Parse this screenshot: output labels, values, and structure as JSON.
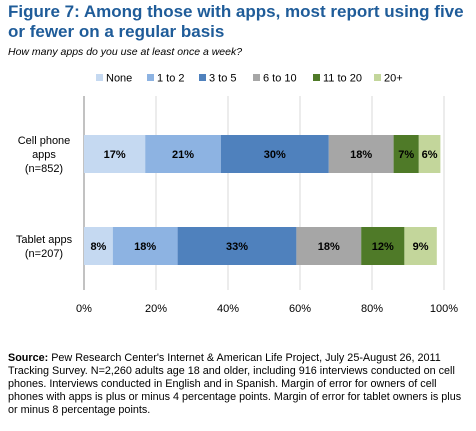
{
  "title": "Figure 7: Among those with apps, most report using five or fewer on a regular basis",
  "subtitle": "How many apps do you use at least once a week?",
  "source_label": "Source:",
  "source_text": "Pew Research Center's Internet & American Life Project, July 25-August 26, 2011 Tracking Survey.  N=2,260 adults age 18 and older, including 916 interviews conducted on cell phones.  Interviews conducted in English and in Spanish.  Margin of error for owners of cell phones with apps is plus or minus 4 percentage points.  Margin of error for tablet owners is plus or minus 8 percentage points.",
  "chart_data": {
    "type": "bar",
    "orientation": "horizontal",
    "stacked": true,
    "categories": [
      [
        "Cell phone",
        "apps",
        "(n=852)"
      ],
      [
        "Tablet apps",
        "(n=207)"
      ]
    ],
    "series": [
      {
        "name": "None",
        "color": "#c5d9f1",
        "values": [
          17,
          8
        ]
      },
      {
        "name": "1 to 2",
        "color": "#8db3e2",
        "values": [
          21,
          18
        ]
      },
      {
        "name": "3 to 5",
        "color": "#4f81bd",
        "values": [
          30,
          33
        ]
      },
      {
        "name": "6 to 10",
        "color": "#a6a6a6",
        "values": [
          18,
          18
        ]
      },
      {
        "name": "11 to 20",
        "color": "#4f7a28",
        "values": [
          7,
          12
        ]
      },
      {
        "name": "20+",
        "color": "#c3d69b",
        "values": [
          6,
          9
        ]
      }
    ],
    "xlim": [
      0,
      100
    ],
    "xticks": [
      "0%",
      "20%",
      "40%",
      "60%",
      "80%",
      "100%"
    ],
    "grid": true,
    "legend_position": "top"
  }
}
